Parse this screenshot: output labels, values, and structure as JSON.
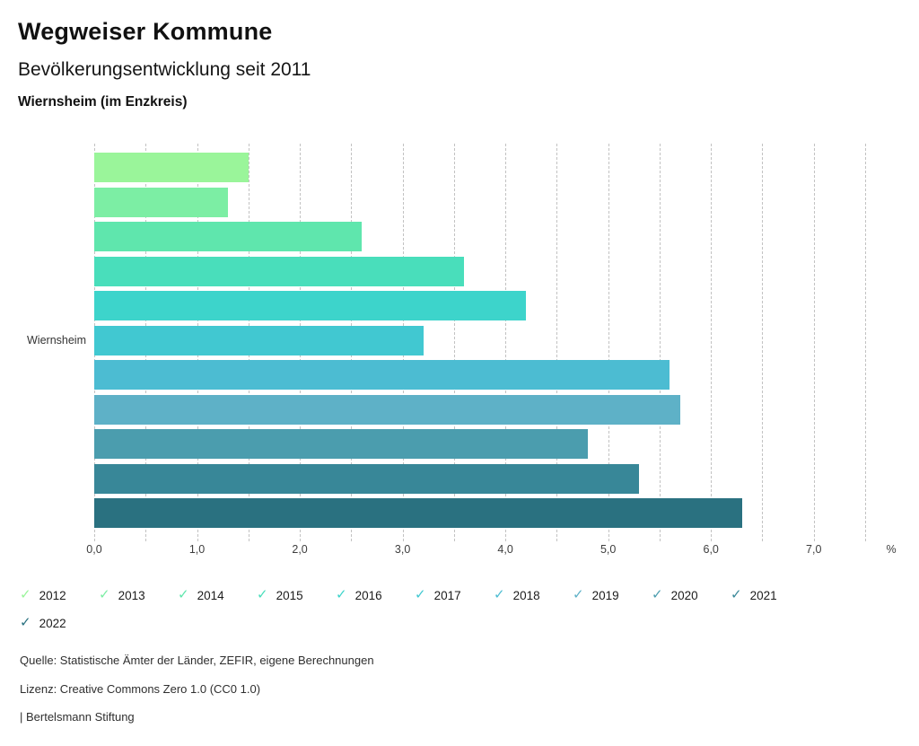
{
  "header": {
    "title": "Wegweiser Kommune",
    "subtitle": "Bevölkerungsentwicklung seit 2011",
    "region": "Wiernsheim (im Enzkreis)"
  },
  "chart_data": {
    "type": "bar",
    "orientation": "horizontal",
    "title": "Bevölkerungsentwicklung seit 2011",
    "category_label": "Wiernsheim",
    "unit": "%",
    "xlim": [
      0,
      7.5
    ],
    "grid_step": 0.5,
    "grid_style": "dashed-vertical",
    "x_ticks": [
      {
        "label": "0,0",
        "value": 0
      },
      {
        "label": "1,0",
        "value": 1
      },
      {
        "label": "2,0",
        "value": 2
      },
      {
        "label": "3,0",
        "value": 3
      },
      {
        "label": "4,0",
        "value": 4
      },
      {
        "label": "5,0",
        "value": 5
      },
      {
        "label": "6,0",
        "value": 6
      },
      {
        "label": "7,0",
        "value": 7
      }
    ],
    "series": [
      {
        "name": "2012",
        "value": 1.5,
        "color": "#9AF59A"
      },
      {
        "name": "2013",
        "value": 1.3,
        "color": "#7CEEA4"
      },
      {
        "name": "2014",
        "value": 2.6,
        "color": "#5FE6AD"
      },
      {
        "name": "2015",
        "value": 3.6,
        "color": "#49DEBB"
      },
      {
        "name": "2016",
        "value": 4.2,
        "color": "#3DD4CB"
      },
      {
        "name": "2017",
        "value": 3.2,
        "color": "#41C8D1"
      },
      {
        "name": "2018",
        "value": 5.6,
        "color": "#4CBCD2"
      },
      {
        "name": "2019",
        "value": 5.7,
        "color": "#5EB1C7"
      },
      {
        "name": "2020",
        "value": 4.8,
        "color": "#4B9DAE"
      },
      {
        "name": "2021",
        "value": 5.3,
        "color": "#388798"
      },
      {
        "name": "2022",
        "value": 6.3,
        "color": "#2A7180"
      }
    ],
    "legend_position": "bottom",
    "legend_icon": "check"
  },
  "footer": {
    "source": "Quelle: Statistische Ämter der Länder, ZEFIR, eigene Berechnungen",
    "license": "Lizenz: Creative Commons Zero 1.0 (CC0 1.0)",
    "brand": "| Bertelsmann Stiftung"
  }
}
